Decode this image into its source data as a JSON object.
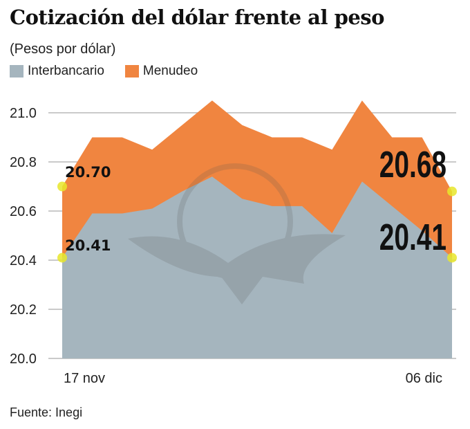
{
  "chart_data": {
    "type": "area",
    "title": "Cotización del dólar frente al peso",
    "subtitle": "(Pesos por dólar)",
    "xlabel": "",
    "ylabel": "",
    "ylim": [
      20.0,
      21.0
    ],
    "yticks": [
      "20.0",
      "20.2",
      "20.4",
      "20.6",
      "20.8",
      "21.0"
    ],
    "xtick_labels": [
      "17 nov",
      "06 dic"
    ],
    "grid": true,
    "legend": "top-left",
    "series": [
      {
        "name": "Menudeo",
        "color": "#f08540",
        "values": [
          20.7,
          20.9,
          20.9,
          20.85,
          20.95,
          21.05,
          20.95,
          20.9,
          20.9,
          20.85,
          21.05,
          20.9,
          20.9,
          20.68
        ]
      },
      {
        "name": "Interbancario",
        "color": "#a5b5be",
        "values": [
          20.41,
          20.59,
          20.59,
          20.61,
          20.68,
          20.74,
          20.65,
          20.62,
          20.62,
          20.51,
          20.72,
          20.62,
          20.52,
          20.41
        ]
      }
    ],
    "annotations": {
      "start_menudeo": "20.70",
      "start_interbancario": "20.41",
      "end_menudeo": "20.68",
      "end_interbancario": "20.41"
    },
    "marker_color": "#e8e62a"
  },
  "source": "Fuente: Inegi"
}
